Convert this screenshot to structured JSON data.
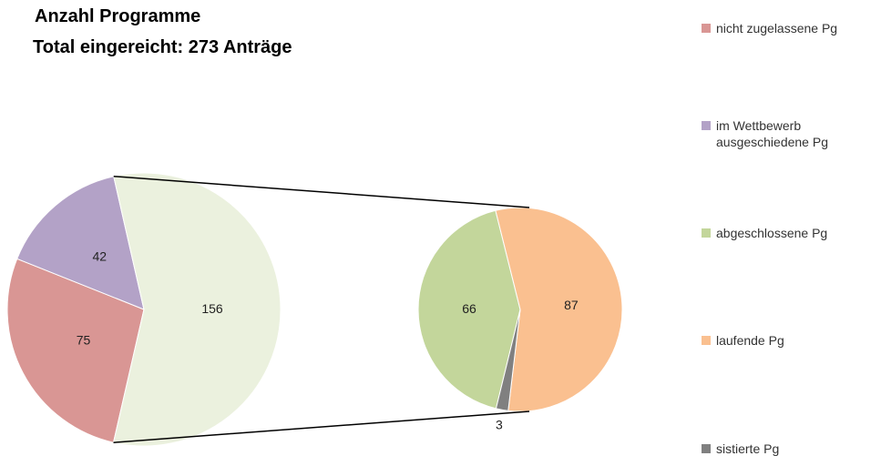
{
  "chart_data": {
    "type": "pie-of-pie",
    "title": "Anzahl Programme",
    "subtitle": "Total eingereicht:  273 Anträge",
    "main": {
      "categories": [
        "nicht zugelassene Pg",
        "im Wettbewerb ausgeschiedene Pg",
        null
      ],
      "values": [
        75,
        42,
        156
      ],
      "colors": [
        "#d99694",
        "#b3a2c7",
        "#ebf1de"
      ]
    },
    "secondary": {
      "categories": [
        "abgeschlossene Pg",
        "laufende Pg",
        "sistierte Pg"
      ],
      "values": [
        66,
        87,
        3
      ],
      "colors": [
        "#c3d69b",
        "#fac090",
        "#808080"
      ]
    },
    "legend": "right"
  }
}
